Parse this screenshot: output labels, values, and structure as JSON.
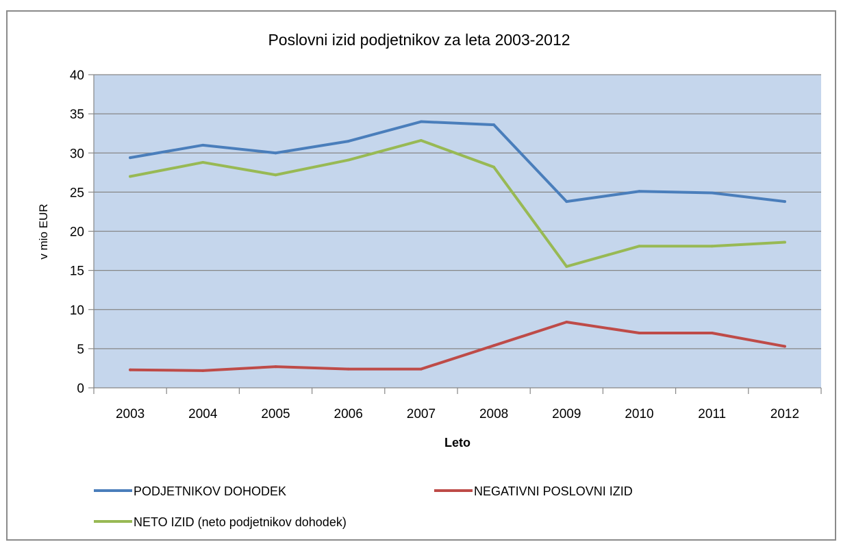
{
  "chart_data": {
    "type": "line",
    "title": "Poslovni izid podjetnikov za leta 2003-2012",
    "xlabel": "Leto",
    "ylabel": "v mio EUR",
    "ylim": [
      0,
      40
    ],
    "yticks": [
      "0",
      "5",
      "10",
      "15",
      "20",
      "25",
      "30",
      "35",
      "40"
    ],
    "categories": [
      "2003",
      "2004",
      "2005",
      "2006",
      "2007",
      "2008",
      "2009",
      "2010",
      "2011",
      "2012"
    ],
    "grid": true,
    "legend_position": "bottom",
    "plot_background": "#c5d6ec",
    "series": [
      {
        "name": "PODJETNIKOV DOHODEK",
        "color": "#4a7ebb",
        "values": [
          29.4,
          31.0,
          30.0,
          31.5,
          34.0,
          33.6,
          23.8,
          25.1,
          24.9,
          23.8
        ]
      },
      {
        "name": "NEGATIVNI POSLOVNI IZID",
        "color": "#be4b48",
        "values": [
          2.3,
          2.2,
          2.7,
          2.4,
          2.4,
          5.4,
          8.4,
          7.0,
          7.0,
          5.3
        ]
      },
      {
        "name": "NETO IZID (neto podjetnikov dohodek)",
        "color": "#98b954",
        "values": [
          27.0,
          28.8,
          27.2,
          29.1,
          31.6,
          28.2,
          15.5,
          18.1,
          18.1,
          18.6
        ]
      }
    ]
  }
}
